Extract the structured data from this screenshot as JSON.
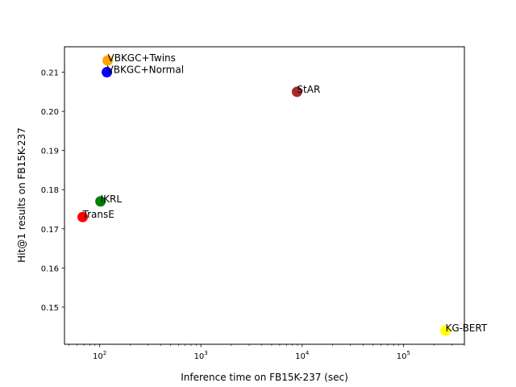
{
  "chart_data": {
    "type": "scatter",
    "title": "",
    "xlabel": "Inference time on FB15K-237 (sec)",
    "ylabel": "Hit@1 results on FB15K-237",
    "x_scale": "log",
    "xlim": [
      45,
      400000
    ],
    "ylim": [
      0.1405,
      0.2165
    ],
    "x_major_ticks": [
      100,
      1000,
      10000,
      100000
    ],
    "x_tick_labels": [
      {
        "base": "10",
        "exp": "2"
      },
      {
        "base": "10",
        "exp": "3"
      },
      {
        "base": "10",
        "exp": "4"
      },
      {
        "base": "10",
        "exp": "5"
      }
    ],
    "y_ticks": [
      0.15,
      0.16,
      0.17,
      0.18,
      0.19,
      0.2,
      0.21
    ],
    "y_tick_labels": [
      "0.15",
      "0.16",
      "0.17",
      "0.18",
      "0.19",
      "0.20",
      "0.21"
    ],
    "grid": false,
    "legend": "none",
    "points": [
      {
        "label": "VBKGC+Twins",
        "x": 120,
        "y": 0.213,
        "color": "#ffa500"
      },
      {
        "label": "VBKGC+Normal",
        "x": 118,
        "y": 0.21,
        "color": "#0000ff"
      },
      {
        "label": "StAR",
        "x": 8900,
        "y": 0.205,
        "color": "#a52a2a"
      },
      {
        "label": "IKRL",
        "x": 102,
        "y": 0.177,
        "color": "#008000"
      },
      {
        "label": "TransE",
        "x": 68,
        "y": 0.173,
        "color": "#ff0000"
      },
      {
        "label": "KG-BERT",
        "x": 260000,
        "y": 0.144,
        "color": "#ffff00"
      }
    ]
  }
}
